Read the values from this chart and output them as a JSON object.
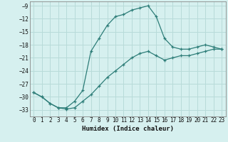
{
  "xlabel": "Humidex (Indice chaleur)",
  "background_color": "#d6f0ef",
  "grid_color": "#b8dbd9",
  "line_color": "#2d7d78",
  "xlim": [
    -0.5,
    23.5
  ],
  "ylim": [
    -34.5,
    -8.0
  ],
  "yticks": [
    -9,
    -12,
    -15,
    -18,
    -21,
    -24,
    -27,
    -30,
    -33
  ],
  "xticks": [
    0,
    1,
    2,
    3,
    4,
    5,
    6,
    7,
    8,
    9,
    10,
    11,
    12,
    13,
    14,
    15,
    16,
    17,
    18,
    19,
    20,
    21,
    22,
    23
  ],
  "curve1_x": [
    0,
    1,
    2,
    3,
    4,
    5,
    6,
    7,
    8,
    9,
    10,
    11,
    12,
    13,
    14,
    15,
    16,
    17,
    18,
    19,
    20,
    21,
    22,
    23
  ],
  "curve1_y": [
    -29.0,
    -30.0,
    -31.5,
    -32.5,
    -32.5,
    -31.0,
    -28.5,
    -19.5,
    -16.5,
    -13.5,
    -11.5,
    -11.0,
    -10.0,
    -9.5,
    -9.0,
    -11.5,
    -16.5,
    -18.5,
    -19.0,
    -19.0,
    -18.5,
    -18.0,
    -18.5,
    -19.0
  ],
  "curve2_x": [
    0,
    1,
    2,
    3,
    4,
    5,
    6,
    7,
    8,
    9,
    10,
    11,
    12,
    13,
    14,
    15,
    16,
    17,
    18,
    19,
    20,
    21,
    22,
    23
  ],
  "curve2_y": [
    -29.0,
    -30.0,
    -31.5,
    -32.5,
    -32.8,
    -32.5,
    -31.0,
    -29.5,
    -27.5,
    -25.5,
    -24.0,
    -22.5,
    -21.0,
    -20.0,
    -19.5,
    -20.5,
    -21.5,
    -21.0,
    -20.5,
    -20.5,
    -20.0,
    -19.5,
    -19.0,
    -19.0
  ]
}
